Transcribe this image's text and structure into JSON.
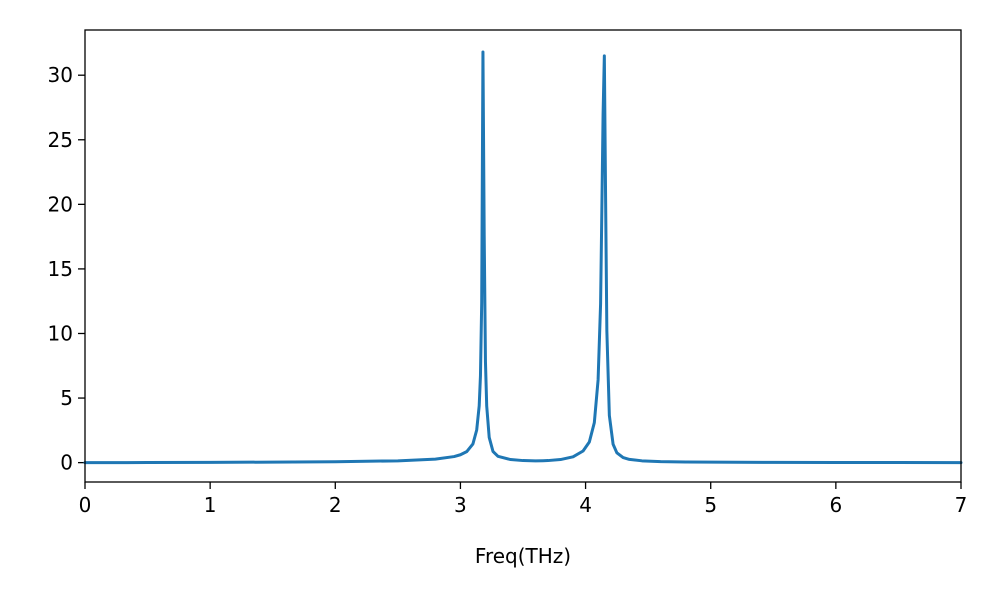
{
  "chart_data": {
    "type": "line",
    "title": "",
    "xlabel": "Freq(THz)",
    "ylabel": "",
    "xlim": [
      0,
      7
    ],
    "ylim": [
      -1.5,
      33.5
    ],
    "xticks": [
      0,
      1,
      2,
      3,
      4,
      5,
      6,
      7
    ],
    "yticks": [
      0,
      5,
      10,
      15,
      20,
      25,
      30
    ],
    "grid": false,
    "line_color": "#1f77b4",
    "peaks": [
      {
        "x": 3.18,
        "y": 31.8
      },
      {
        "x": 4.15,
        "y": 31.5
      }
    ],
    "series": [
      {
        "x": [
          0,
          0.5,
          1.0,
          1.5,
          2.0,
          2.5,
          2.8,
          2.95,
          3.0,
          3.05,
          3.1,
          3.13,
          3.15,
          3.16,
          3.17,
          3.18,
          3.19,
          3.2,
          3.21,
          3.23,
          3.26,
          3.3,
          3.4,
          3.5,
          3.6,
          3.66,
          3.7,
          3.8,
          3.9,
          3.98,
          4.03,
          4.07,
          4.1,
          4.12,
          4.13,
          4.14,
          4.15,
          4.16,
          4.17,
          4.19,
          4.22,
          4.25,
          4.3,
          4.35,
          4.45,
          4.6,
          4.8,
          5.0,
          5.5,
          6.0,
          6.5,
          7.0
        ],
        "values": [
          0.0,
          0.005,
          0.02,
          0.04,
          0.07,
          0.14,
          0.27,
          0.47,
          0.61,
          0.85,
          1.45,
          2.53,
          4.4,
          6.7,
          12.4,
          31.8,
          17.5,
          7.8,
          4.38,
          1.95,
          0.87,
          0.49,
          0.24,
          0.16,
          0.14,
          0.15,
          0.16,
          0.24,
          0.45,
          0.9,
          1.6,
          3.1,
          6.4,
          12.3,
          19.5,
          27.0,
          31.5,
          20.5,
          10.2,
          3.65,
          1.42,
          0.76,
          0.39,
          0.25,
          0.14,
          0.08,
          0.05,
          0.035,
          0.018,
          0.01,
          0.006,
          0.004
        ]
      }
    ]
  }
}
